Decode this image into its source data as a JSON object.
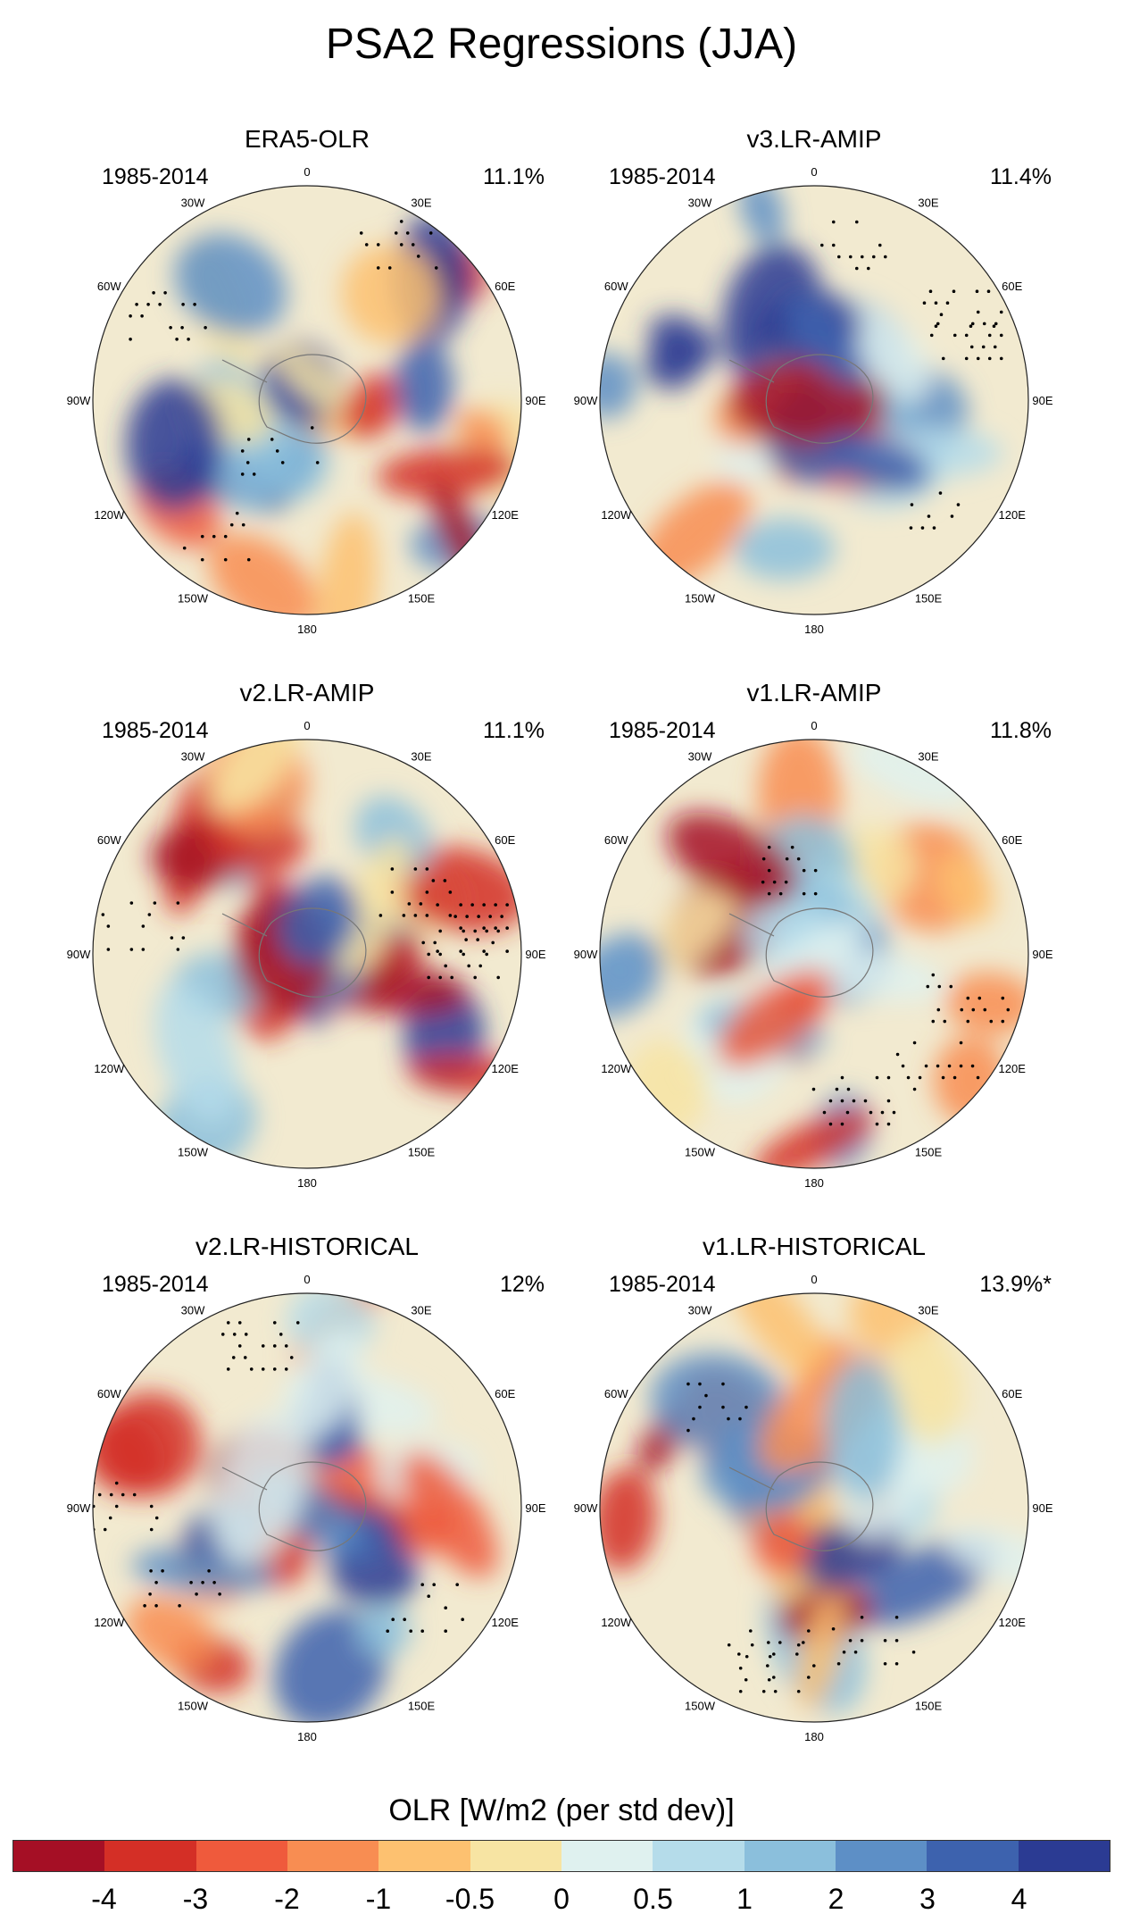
{
  "title": "PSA2 Regressions (JJA)",
  "panels": [
    {
      "title": "ERA5-OLR",
      "period": "1985-2014",
      "percent": "11.1%"
    },
    {
      "title": "v3.LR-AMIP",
      "period": "1985-2014",
      "percent": "11.4%"
    },
    {
      "title": "v2.LR-AMIP",
      "period": "1985-2014",
      "percent": "11.1%"
    },
    {
      "title": "v1.LR-AMIP",
      "period": "1985-2014",
      "percent": "11.8%"
    },
    {
      "title": "v2.LR-HISTORICAL",
      "period": "1985-2014",
      "percent": "12%"
    },
    {
      "title": "v1.LR-HISTORICAL",
      "period": "1985-2014",
      "percent": "13.9%*"
    }
  ],
  "longitude_labels": {
    "lon_0": "0",
    "lon_30e": "30E",
    "lon_60e": "60E",
    "lon_90e": "90E",
    "lon_120e": "120E",
    "lon_150e": "150E",
    "lon_180": "180",
    "lon_150w": "150W",
    "lon_120w": "120W",
    "lon_90w": "90W",
    "lon_60w": "60W",
    "lon_30w": "30W"
  },
  "colorbar": {
    "title": "OLR [W/m2 (per std dev)]",
    "colors": [
      "#a50f25",
      "#d42f26",
      "#ef5a3c",
      "#f88d52",
      "#fdc170",
      "#f7e4a3",
      "#dff1ef",
      "#b5dcea",
      "#8bbfdc",
      "#5d8fc6",
      "#3d62ae",
      "#2b3b93"
    ],
    "tick_labels": [
      "-4",
      "-3",
      "-2",
      "-1",
      "-0.5",
      "0",
      "0.5",
      "1",
      "2",
      "3",
      "4"
    ]
  }
}
